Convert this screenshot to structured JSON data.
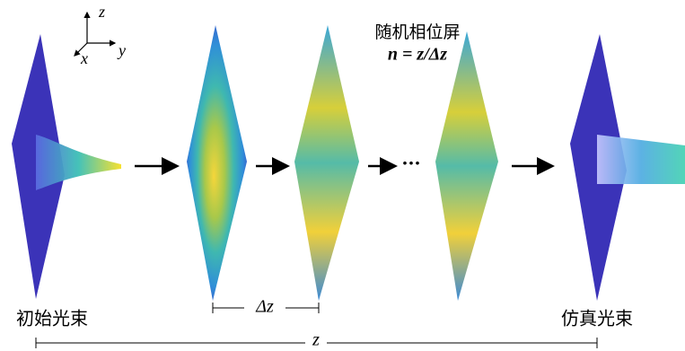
{
  "axes": {
    "z": "z",
    "y": "y",
    "x": "x"
  },
  "screen_label": {
    "title": "随机相位屏",
    "formula": "n = z/Δz"
  },
  "labels": {
    "input": "初始光束",
    "output": "仿真光束"
  },
  "ellipsis": "···",
  "spacing": "Δz",
  "distance": "z"
}
